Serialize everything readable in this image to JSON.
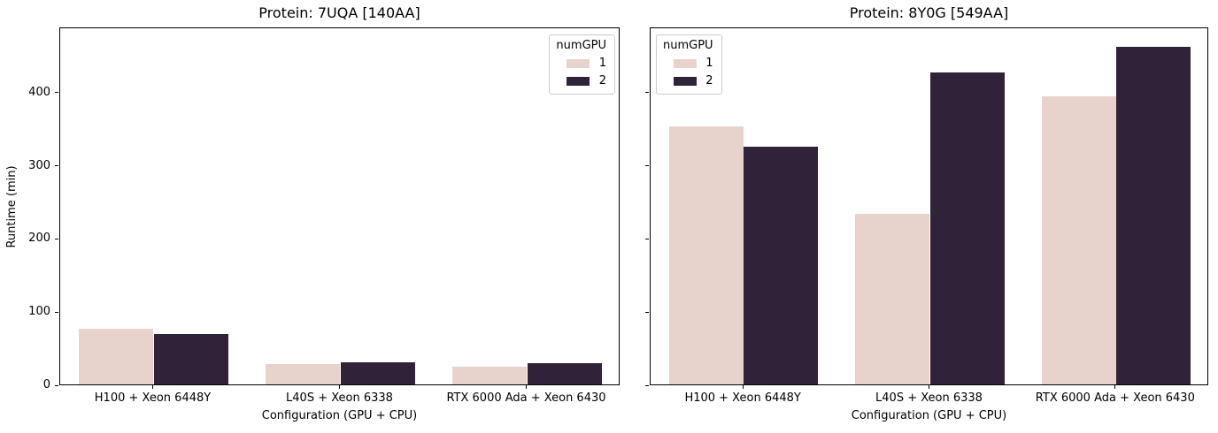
{
  "figure": {
    "background": "#ffffff",
    "ylabel": "Runtime (min)",
    "xlabel": "Configuration (GPU + CPU)",
    "legend_title": "numGPU",
    "colors": {
      "numGPU_1": "#e8d3cc",
      "numGPU_2": "#2f2239",
      "axis": "#000000",
      "legend_border": "#cccccc"
    }
  },
  "chart_data": [
    {
      "type": "bar",
      "title": "Protein: 7UQA [140AA]",
      "categories": [
        "H100 + Xeon 6448Y",
        "L40S + Xeon 6338",
        "RTX 6000 Ada + Xeon 6430"
      ],
      "series": [
        {
          "name": "1",
          "color": "#e8d3cc",
          "values": [
            76,
            28,
            24
          ]
        },
        {
          "name": "2",
          "color": "#2f2239",
          "values": [
            69,
            30,
            29
          ]
        }
      ],
      "xlabel": "Configuration (GPU + CPU)",
      "ylabel": "Runtime (min)",
      "ylim": [
        0,
        489
      ],
      "yticks": [
        0,
        100,
        200,
        300,
        400
      ],
      "ytick_labels_visible": true,
      "grid": false,
      "legend": {
        "title": "numGPU",
        "position": "upper-right",
        "entries": [
          "1",
          "2"
        ]
      }
    },
    {
      "type": "bar",
      "title": "Protein: 8Y0G [549AA]",
      "categories": [
        "H100 + Xeon 6448Y",
        "L40S + Xeon 6338",
        "RTX 6000 Ada + Xeon 6430"
      ],
      "series": [
        {
          "name": "1",
          "color": "#e8d3cc",
          "values": [
            354,
            234,
            395
          ]
        },
        {
          "name": "2",
          "color": "#2f2239",
          "values": [
            327,
            428,
            463
          ]
        }
      ],
      "xlabel": "Configuration (GPU + CPU)",
      "ylabel": "",
      "ylim": [
        0,
        489
      ],
      "yticks": [
        0,
        100,
        200,
        300,
        400
      ],
      "ytick_labels_visible": false,
      "grid": false,
      "legend": {
        "title": "numGPU",
        "position": "upper-left",
        "entries": [
          "1",
          "2"
        ]
      }
    }
  ]
}
